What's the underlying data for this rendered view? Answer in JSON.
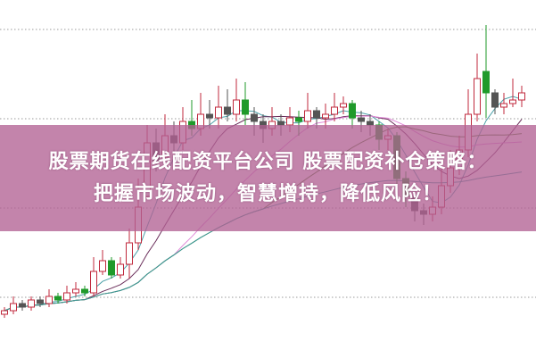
{
  "headline": {
    "line1": "股票期货在线配资平台公司 股票配资补仓策略：",
    "line2": "把握市场波动，智慧增持，降低风险！"
  },
  "colors": {
    "banner": "#b26294",
    "up": "#c0283c",
    "down": "#1f9a2a",
    "down_dark": "#555555",
    "grid": "#999999",
    "ma": [
      "#4aa0a8",
      "#6a2d5a",
      "#e08ad8",
      "#4a7a2a",
      "#3a9a9a"
    ]
  },
  "chart_data": {
    "type": "candlestick",
    "title": "",
    "grid": true,
    "moving_averages": [
      5,
      10,
      20,
      30,
      60
    ],
    "candles": [
      [
        12,
        13,
        14,
        11
      ],
      [
        13,
        15,
        17,
        12
      ],
      [
        15,
        14,
        16,
        13
      ],
      [
        14,
        16,
        17,
        13
      ],
      [
        16,
        15,
        17,
        14
      ],
      [
        15,
        17,
        19,
        14
      ],
      [
        17,
        16,
        18,
        15
      ],
      [
        16,
        18,
        20,
        15
      ],
      [
        18,
        19,
        21,
        17
      ],
      [
        19,
        18,
        20,
        17
      ],
      [
        18,
        24,
        28,
        17
      ],
      [
        24,
        27,
        30,
        23
      ],
      [
        27,
        23,
        28,
        22
      ],
      [
        23,
        26,
        28,
        22
      ],
      [
        26,
        32,
        36,
        22
      ],
      [
        32,
        42,
        50,
        30
      ],
      [
        45,
        60,
        65,
        44
      ],
      [
        60,
        55,
        64,
        52
      ],
      [
        56,
        62,
        68,
        55
      ],
      [
        62,
        60,
        66,
        57
      ],
      [
        60,
        66,
        70,
        58
      ],
      [
        66,
        64,
        72,
        62
      ],
      [
        64,
        68,
        74,
        62
      ],
      [
        68,
        67,
        72,
        64
      ],
      [
        67,
        70,
        76,
        64
      ],
      [
        70,
        68,
        75,
        66
      ],
      [
        68,
        72,
        78,
        66
      ],
      [
        72,
        68,
        77,
        65
      ],
      [
        68,
        66,
        70,
        62
      ],
      [
        66,
        64,
        68,
        60
      ],
      [
        64,
        66,
        70,
        62
      ],
      [
        66,
        65,
        68,
        62
      ],
      [
        65,
        67,
        70,
        63
      ],
      [
        67,
        66,
        69,
        62
      ],
      [
        66,
        69,
        74,
        64
      ],
      [
        69,
        67,
        70,
        64
      ],
      [
        67,
        68,
        71,
        64
      ],
      [
        68,
        70,
        74,
        66
      ],
      [
        70,
        71,
        73,
        68
      ],
      [
        71,
        67,
        72,
        64
      ],
      [
        67,
        66,
        69,
        63
      ],
      [
        66,
        65,
        68,
        62
      ],
      [
        65,
        61,
        66,
        58
      ],
      [
        61,
        62,
        64,
        58
      ],
      [
        62,
        50,
        63,
        46
      ],
      [
        50,
        45,
        52,
        42
      ],
      [
        45,
        41,
        47,
        38
      ],
      [
        41,
        40,
        43,
        37
      ],
      [
        40,
        42,
        45,
        38
      ],
      [
        42,
        48,
        53,
        40
      ],
      [
        48,
        53,
        58,
        46
      ],
      [
        53,
        58,
        62,
        51
      ],
      [
        58,
        68,
        75,
        56
      ],
      [
        68,
        78,
        85,
        66
      ],
      [
        80,
        74,
        93,
        67
      ],
      [
        74,
        70,
        75,
        68
      ],
      [
        70,
        71,
        74,
        68
      ],
      [
        71,
        72,
        78,
        70
      ],
      [
        72,
        74,
        76,
        70
      ]
    ],
    "candle_fields": [
      "open",
      "close",
      "high",
      "low"
    ]
  }
}
